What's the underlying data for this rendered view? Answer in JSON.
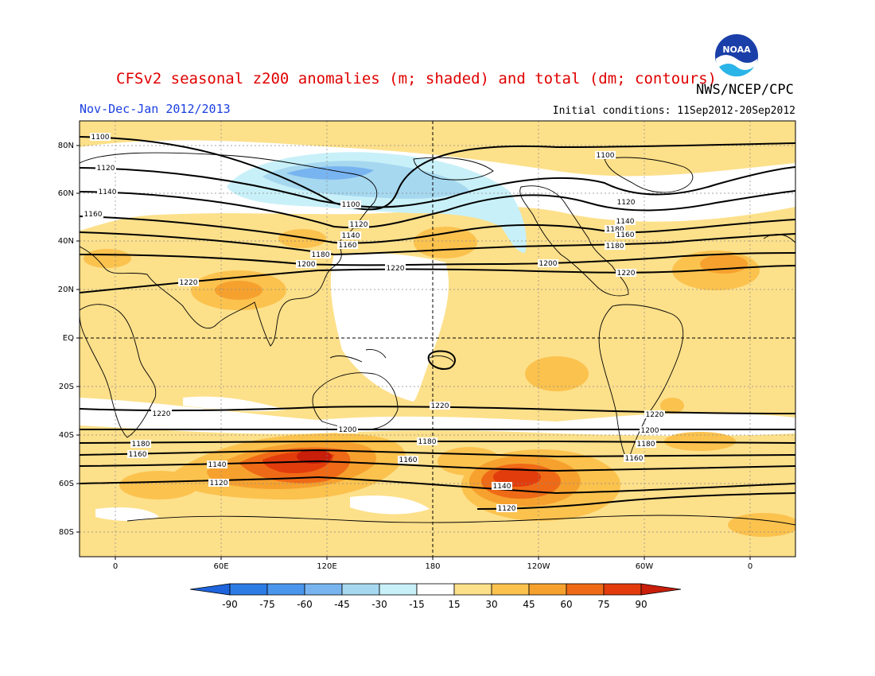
{
  "header": {
    "title": "CFSv2 seasonal z200 anomalies (m; shaded) and total (dm; contours)",
    "period": "Nov-Dec-Jan 2012/2013",
    "initial_conditions": "Initial conditions: 11Sep2012-20Sep2012",
    "organization": "NWS/NCEP/CPC",
    "logo_text": "NOAA"
  },
  "axes": {
    "lat_labels": [
      "80N",
      "60N",
      "40N",
      "20N",
      "EQ",
      "20S",
      "40S",
      "60S",
      "80S"
    ],
    "lon_labels": [
      "0",
      "60E",
      "120E",
      "180",
      "120W",
      "60W",
      "0"
    ]
  },
  "contours": {
    "labels": [
      "1100",
      "1120",
      "1140",
      "1160",
      "1180",
      "1200",
      "1220",
      "1100",
      "1120",
      "1140",
      "1160",
      "1180",
      "1200",
      "1220",
      "1100",
      "1120",
      "1140",
      "1160",
      "1180",
      "1200",
      "1220",
      "1220",
      "1200",
      "1180",
      "1160",
      "1140",
      "1120",
      "1220",
      "1200",
      "1180",
      "1160",
      "1140",
      "1120",
      "1220",
      "1200",
      "1180",
      "1160"
    ]
  },
  "colorbar": {
    "ticks": [
      "-90",
      "-75",
      "-60",
      "-45",
      "-30",
      "-15",
      "15",
      "30",
      "45",
      "60",
      "75",
      "90"
    ],
    "colors": [
      "#1e64dc",
      "#2d7ce6",
      "#4a96ec",
      "#78b4f0",
      "#a6d8f0",
      "#c8f0f8",
      "#ffffff",
      "#fde08a",
      "#fbc24e",
      "#f6a12e",
      "#ef6a16",
      "#e23c0c",
      "#c81e0a"
    ]
  },
  "colors": {
    "title": "#e00000",
    "period": "#1a3fe0",
    "land": "#000000",
    "background_anomaly": "#fde08a"
  }
}
